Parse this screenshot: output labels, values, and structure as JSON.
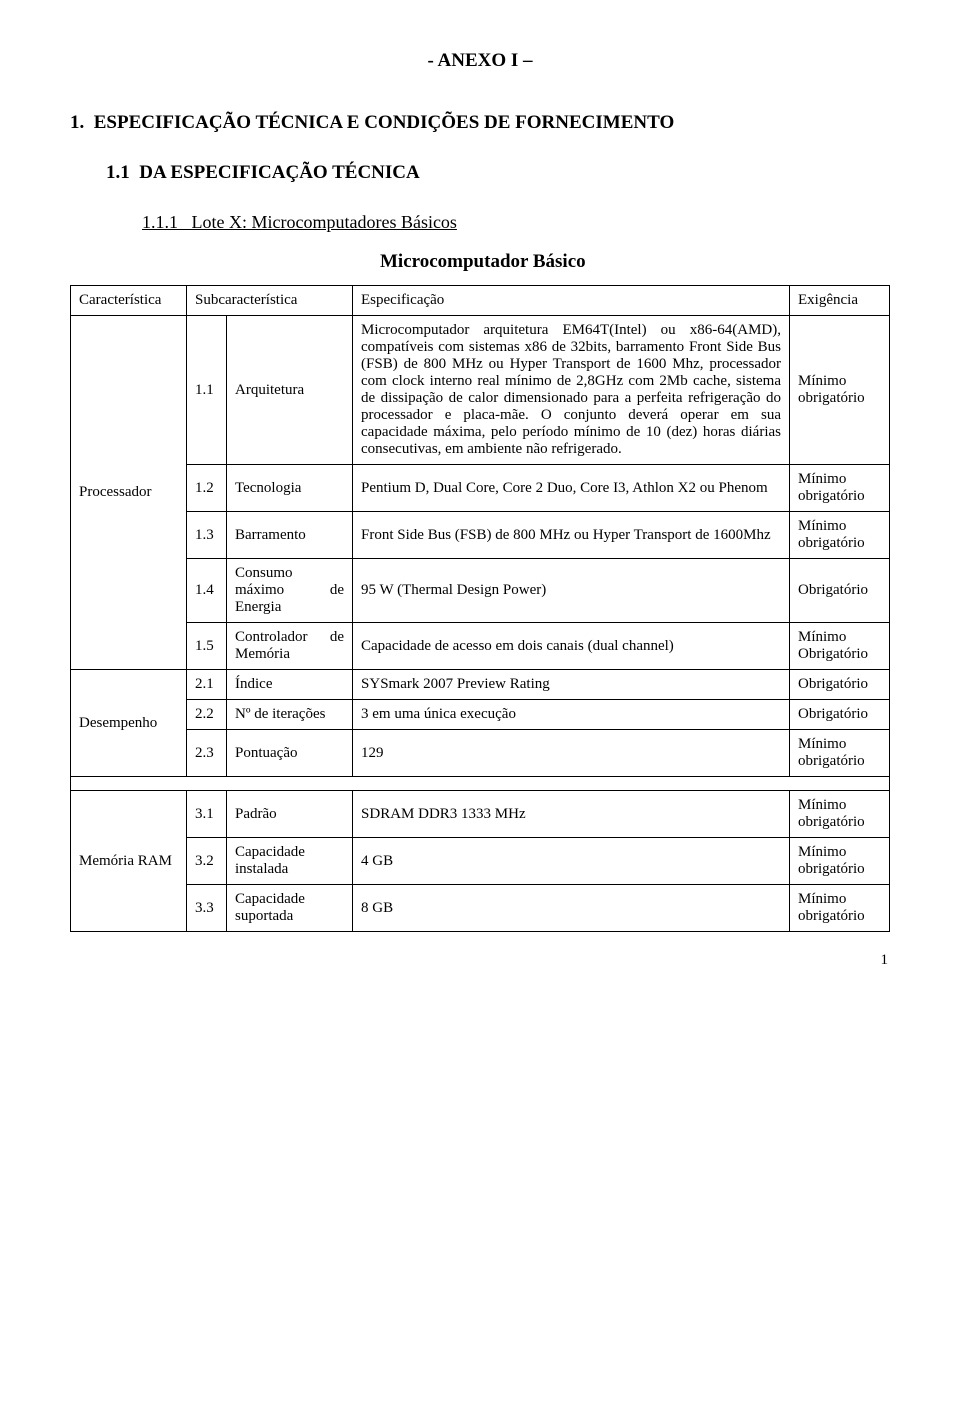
{
  "doc": {
    "title1": "- ANEXO I –",
    "title2": "1.  ESPECIFICAÇÃO TÉCNICA E CONDIÇÕES DE FORNECIMENTO",
    "title3": "1.1  DA ESPECIFICAÇÃO TÉCNICA",
    "title4": "1.1.1   Lote X: Microcomputadores Básicos",
    "micro_title": "Microcomputador Básico",
    "page_num": "1"
  },
  "headers": {
    "car": "Característica",
    "sub": "Subcaracterística",
    "spec": "Especificação",
    "ex": "Exigência"
  },
  "groups": [
    {
      "name": "Processador",
      "rows": [
        {
          "n": "1.1",
          "sub": "Arquitetura",
          "spec": "Microcomputador arquitetura EM64T(Intel) ou x86-64(AMD), compatíveis com sistemas x86 de 32bits, barramento Front Side Bus (FSB) de 800 MHz ou Hyper Transport de 1600 Mhz, processador com clock interno real mínimo de 2,8GHz com 2Mb cache, sistema de dissipação de calor dimensionado para a perfeita refrigeração do processador e placa-mãe. O conjunto deverá operar em sua capacidade máxima, pelo período mínimo de 10 (dez) horas diárias consecutivas, em ambiente não refrigerado.",
          "ex": "Mínimo obrigatório"
        },
        {
          "n": "1.2",
          "sub": "Tecnologia",
          "spec": "Pentium D, Dual Core, Core 2 Duo, Core I3, Athlon X2 ou Phenom",
          "ex": "Mínimo obrigatório"
        },
        {
          "n": "1.3",
          "sub": "Barramento",
          "spec": "Front Side Bus (FSB) de 800 MHz ou Hyper Transport de 1600Mhz",
          "ex": "Mínimo obrigatório"
        },
        {
          "n": "1.4",
          "sub": "Consumo máximo de Energia",
          "spec": "95 W (Thermal Design Power)",
          "ex": "Obrigatório"
        },
        {
          "n": "1.5",
          "sub": "Controlador de Memória",
          "spec": "Capacidade de acesso em dois canais (dual channel)",
          "ex": "Mínimo Obrigatório"
        }
      ]
    },
    {
      "name": "Desempenho",
      "rows": [
        {
          "n": "2.1",
          "sub": "Índice",
          "spec": "SYSmark 2007 Preview Rating",
          "ex": "Obrigatório"
        },
        {
          "n": "2.2",
          "sub": "Nº de iterações",
          "spec": "3 em uma única execução",
          "ex": "Obrigatório"
        },
        {
          "n": "2.3",
          "sub": "Pontuação",
          "spec": "129",
          "ex": "Mínimo obrigatório"
        }
      ]
    },
    {
      "name": "Memória RAM",
      "separator_before": true,
      "rows": [
        {
          "n": "3.1",
          "sub": "Padrão",
          "spec": "SDRAM DDR3 1333 MHz",
          "ex": "Mínimo obrigatório"
        },
        {
          "n": "3.2",
          "sub": "Capacidade instalada",
          "spec": "4 GB",
          "ex": "Mínimo obrigatório"
        },
        {
          "n": "3.3",
          "sub": "Capacidade suportada",
          "spec": "8 GB",
          "ex": "Mínimo obrigatório"
        }
      ]
    }
  ]
}
